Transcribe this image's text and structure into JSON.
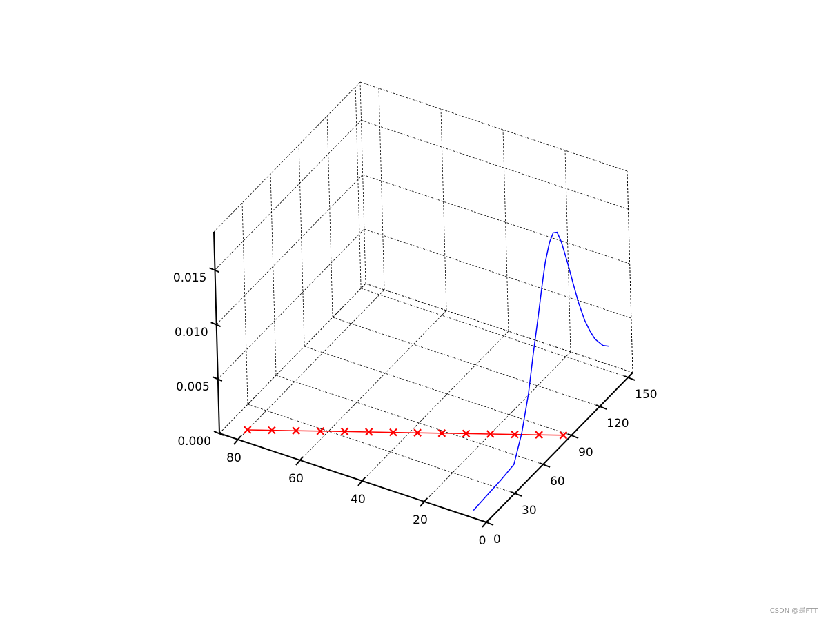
{
  "chart_data": {
    "type": "line3d",
    "xlim": [
      0,
      86
    ],
    "ylim": [
      0,
      155
    ],
    "zlim": [
      0,
      0.0185
    ],
    "xticks": [
      0,
      20,
      40,
      60,
      80
    ],
    "yticks": [
      0,
      30,
      60,
      90,
      120,
      150
    ],
    "zticks": [
      {
        "value": 0,
        "label": "0.000"
      },
      {
        "value": 0.005,
        "label": "0.005"
      },
      {
        "value": 0.01,
        "label": "0.010"
      },
      {
        "value": 0.015,
        "label": "0.015"
      }
    ],
    "grid": true,
    "series": [
      {
        "color": "#ff0000",
        "marker": "x",
        "x": [
          80,
          74,
          68,
          62,
          56,
          50,
          44,
          38,
          32,
          26,
          20,
          14,
          8,
          2
        ],
        "y": [
          10,
          16,
          22,
          28,
          34,
          40,
          46,
          52,
          58,
          64,
          70,
          76,
          82,
          88
        ],
        "z": [
          0,
          0,
          0,
          0,
          0,
          0,
          0,
          0,
          0,
          0,
          0,
          0,
          0,
          0
        ]
      },
      {
        "color": "#0000ff",
        "x": [
          6,
          6,
          6,
          6,
          6,
          6,
          6,
          6,
          6,
          6,
          6,
          6,
          6,
          6,
          6,
          6,
          6,
          6,
          6,
          6,
          6,
          6
        ],
        "y": [
          6,
          20,
          35,
          49,
          58,
          66,
          72,
          78,
          83,
          87,
          92,
          96,
          100,
          104,
          110,
          115,
          120,
          126,
          131,
          136,
          144,
          150
        ],
        "z": [
          0,
          0.0001,
          0.0002,
          0.0004,
          0.0025,
          0.0054,
          0.0085,
          0.0113,
          0.0138,
          0.0156,
          0.017,
          0.0175,
          0.0172,
          0.016,
          0.0135,
          0.0112,
          0.009,
          0.0068,
          0.0054,
          0.0042,
          0.0029,
          0.0023
        ]
      }
    ]
  },
  "watermark": "CSDN @是FTT"
}
